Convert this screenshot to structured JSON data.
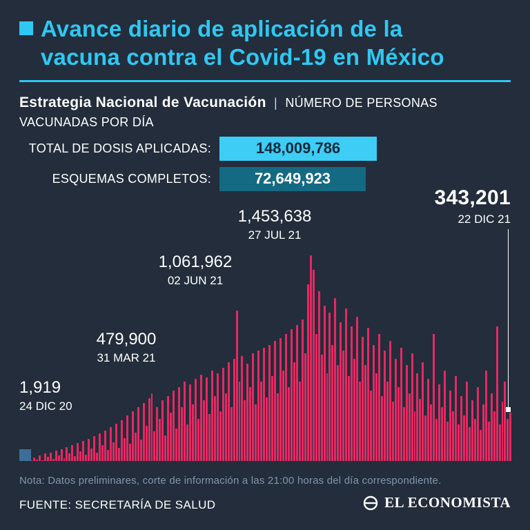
{
  "header": {
    "title_line1": "Avance diario de aplicación de la",
    "title_line2": "vacuna contra el Covid-19 en México"
  },
  "subheader": {
    "strategy": "Estrategia Nacional de Vacunación",
    "separator": "|",
    "descriptor_line1": "NÚMERO DE PERSONAS",
    "descriptor_line2": "VACUNADAS POR DÍA"
  },
  "stats": [
    {
      "label": "TOTAL DE DOSIS APLICADAS:",
      "value": "148,009,786"
    },
    {
      "label": "ESQUEMAS COMPLETOS:",
      "value": "72,649,923"
    }
  ],
  "chart_data": {
    "type": "bar",
    "title": "Avance diario de aplicación de la vacuna contra el Covid-19 en México",
    "series_name": "Número de personas vacunadas por día",
    "x_range": [
      "24 DIC 20",
      "22 DIC 21"
    ],
    "ylim": [
      0,
      1453638
    ],
    "bar_color": "#e72862",
    "annotated_points": [
      {
        "value": "1,919",
        "date": "24 DIC 20"
      },
      {
        "value": "479,900",
        "date": "31 MAR 21"
      },
      {
        "value": "1,061,962",
        "date": "02 JUN 21"
      },
      {
        "value": "1,453,638",
        "date": "27 JUL 21"
      },
      {
        "value": "343,201",
        "date": "22 DIC 21"
      }
    ],
    "values": [
      1919,
      9500,
      4200,
      18000,
      7000,
      26000,
      12000,
      41000,
      3000,
      52000,
      28000,
      60000,
      15000,
      72000,
      38000,
      85000,
      22000,
      98000,
      54000,
      110000,
      35000,
      125000,
      68000,
      140000,
      45000,
      155000,
      90000,
      175000,
      60000,
      195000,
      110000,
      215000,
      80000,
      240000,
      130000,
      265000,
      95000,
      290000,
      160000,
      320000,
      120000,
      350000,
      200000,
      380000,
      150000,
      410000,
      250000,
      445000,
      479900,
      210000,
      380000,
      300000,
      430000,
      180000,
      460000,
      340000,
      500000,
      230000,
      520000,
      380000,
      560000,
      260000,
      540000,
      400000,
      580000,
      300000,
      610000,
      430000,
      590000,
      330000,
      640000,
      460000,
      620000,
      350000,
      660000,
      480000,
      700000,
      380000,
      720000,
      1061962,
      560000,
      740000,
      430000,
      690000,
      520000,
      760000,
      400000,
      780000,
      560000,
      800000,
      450000,
      820000,
      600000,
      850000,
      480000,
      870000,
      640000,
      900000,
      520000,
      930000,
      700000,
      960000,
      560000,
      1000000,
      760000,
      1250000,
      1453638,
      1350000,
      900000,
      1200000,
      750000,
      1100000,
      620000,
      1050000,
      820000,
      1150000,
      680000,
      980000,
      780000,
      1080000,
      600000,
      950000,
      720000,
      1020000,
      560000,
      880000,
      680000,
      940000,
      500000,
      820000,
      620000,
      900000,
      460000,
      780000,
      560000,
      850000,
      420000,
      720000,
      520000,
      800000,
      380000,
      680000,
      480000,
      760000,
      350000,
      620000,
      440000,
      700000,
      320000,
      580000,
      400000,
      900000,
      300000,
      540000,
      380000,
      640000,
      280000,
      500000,
      350000,
      600000,
      260000,
      460000,
      320000,
      560000,
      240000,
      430000,
      300000,
      520000,
      220000,
      400000,
      640000,
      280000,
      480000,
      350000,
      950000,
      260000,
      420000,
      560000,
      300000,
      343201
    ]
  },
  "footer": {
    "note": "Nota: Datos preliminares, corte de información a las 21:00 horas del día correspondiente.",
    "source": "FUENTE: SECRETARÍA DE SALUD",
    "brand": "EL ECONOMISTA"
  },
  "colors": {
    "background": "#232d3b",
    "accent_cyan": "#2fc8f3",
    "badge_teal": "#146a82",
    "bar_pink": "#e72862",
    "note_gray": "#8097ae"
  }
}
